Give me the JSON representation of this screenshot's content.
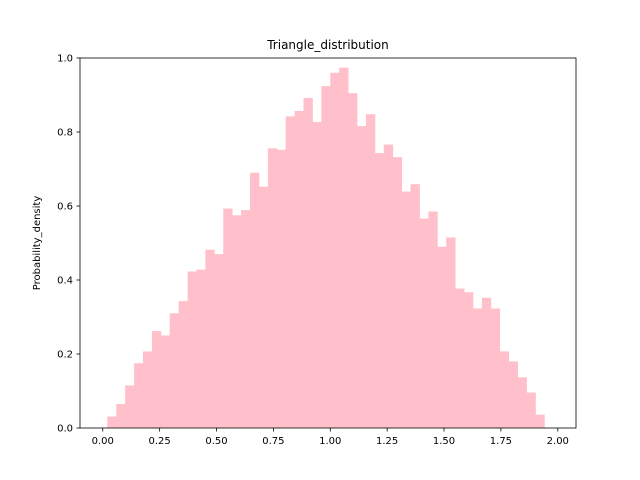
{
  "chart_data": {
    "type": "bar",
    "title": "Triangle_distribution",
    "xlabel": "",
    "ylabel": "Probability_density",
    "xlim": [
      -0.1,
      2.08
    ],
    "ylim": [
      0,
      1.0
    ],
    "x_ticks": [
      0.0,
      0.25,
      0.5,
      0.75,
      1.0,
      1.25,
      1.5,
      1.75,
      2.0
    ],
    "x_tick_labels": [
      "0.00",
      "0.25",
      "0.50",
      "0.75",
      "1.00",
      "1.25",
      "1.50",
      "1.75",
      "2.00"
    ],
    "y_ticks": [
      0.0,
      0.2,
      0.4,
      0.6,
      0.8,
      1.0
    ],
    "y_tick_labels": [
      "0.0",
      "0.2",
      "0.4",
      "0.6",
      "0.8",
      "1.0"
    ],
    "bar_color": "#ffc0cb",
    "grid": false,
    "bin_start": 0.02,
    "bin_width": 0.0392,
    "values": [
      0.031,
      0.065,
      0.115,
      0.175,
      0.207,
      0.262,
      0.25,
      0.31,
      0.343,
      0.423,
      0.428,
      0.482,
      0.47,
      0.593,
      0.575,
      0.589,
      0.69,
      0.652,
      0.756,
      0.752,
      0.842,
      0.857,
      0.892,
      0.827,
      0.924,
      0.96,
      0.974,
      0.905,
      0.816,
      0.848,
      0.743,
      0.766,
      0.732,
      0.639,
      0.659,
      0.566,
      0.585,
      0.49,
      0.515,
      0.377,
      0.367,
      0.323,
      0.352,
      0.323,
      0.207,
      0.18,
      0.137,
      0.096,
      0.036
    ]
  }
}
